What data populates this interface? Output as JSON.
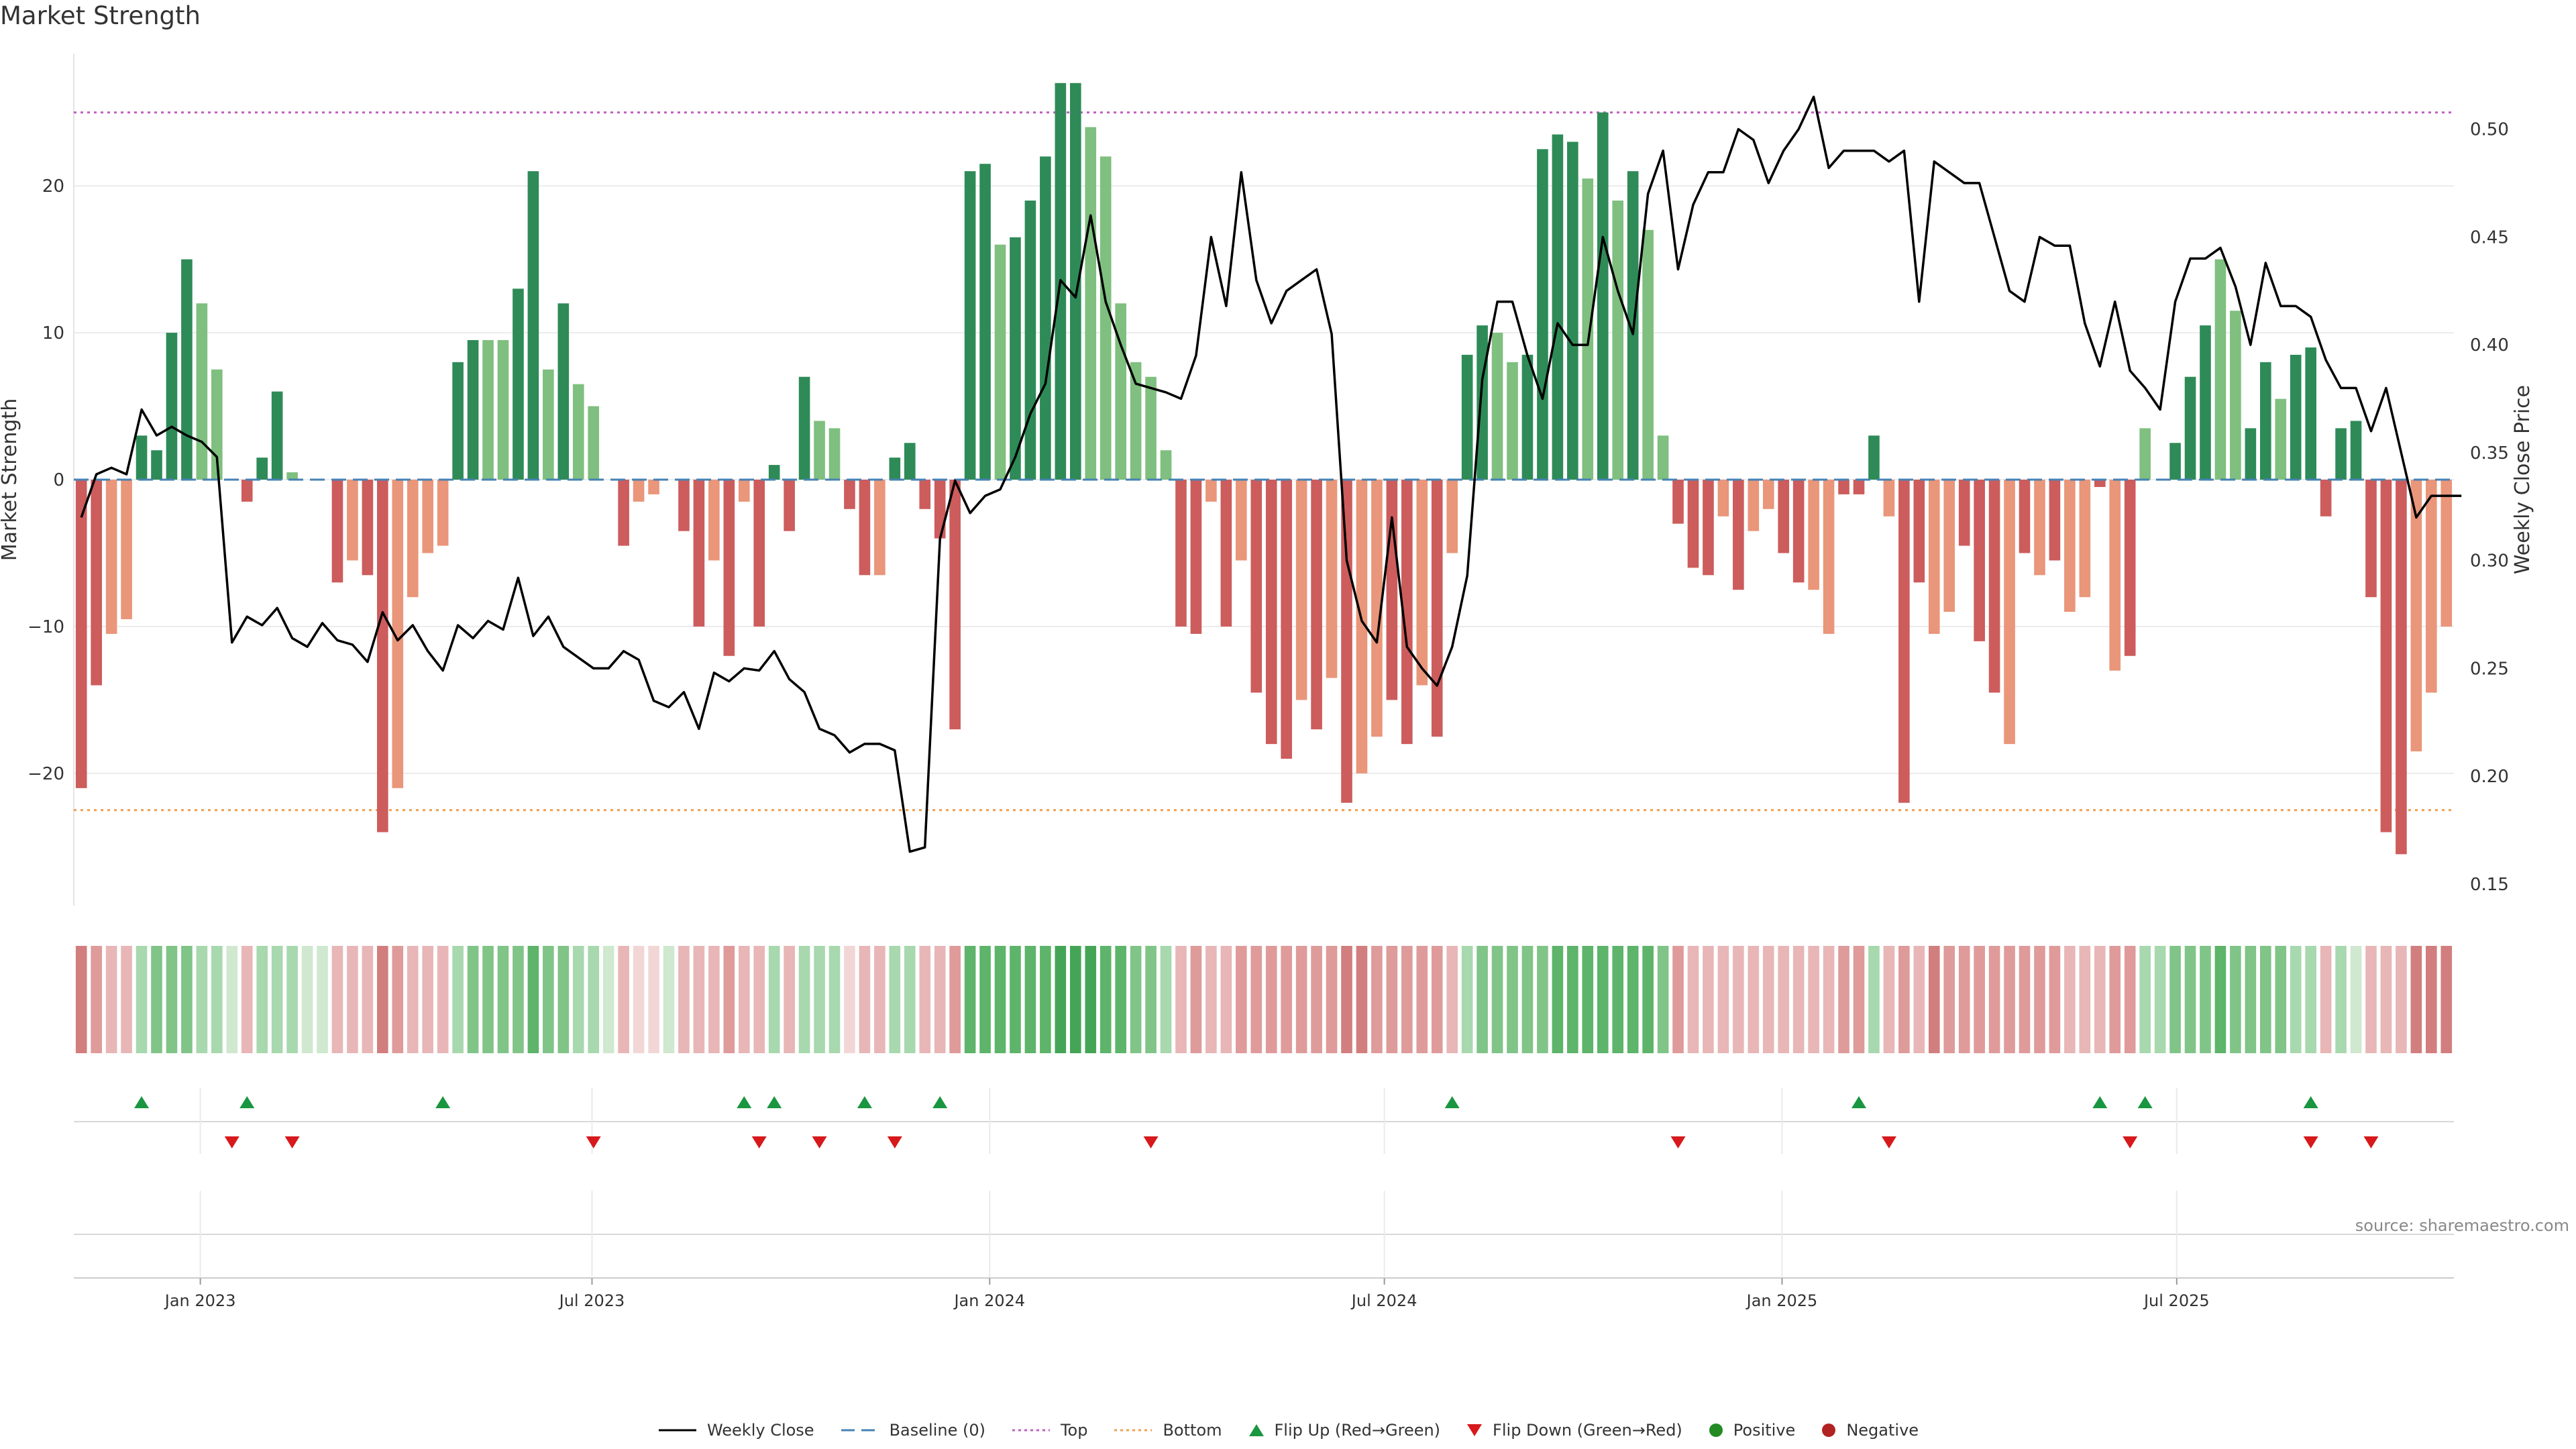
{
  "title": "Market Strength",
  "source": "source: sharemaestro.com",
  "colors": {
    "strong_green": "#2e8b57",
    "light_green": "#7fbf7f",
    "strong_red": "#cd5c5c",
    "light_red": "#e9967a",
    "price_line": "#000000",
    "baseline": "#4682b4",
    "top": "#c060c0",
    "bottom": "#f0a050",
    "flip_up": "#1a9641",
    "flip_down": "#d7191c",
    "positive": "#228b22",
    "negative": "#b22222"
  },
  "legend": [
    {
      "label": "Weekly Close",
      "icon": "solid-line"
    },
    {
      "label": "Baseline (0)",
      "icon": "dashed-line"
    },
    {
      "label": "Top",
      "icon": "dotted-line"
    },
    {
      "label": "Bottom",
      "icon": "dotted-line"
    },
    {
      "label": "Flip Up (Red→Green)",
      "icon": "triangle-up"
    },
    {
      "label": "Flip Down (Green→Red)",
      "icon": "triangle-down"
    },
    {
      "label": "Positive",
      "icon": "circle"
    },
    {
      "label": "Negative",
      "icon": "circle"
    }
  ],
  "chart_data": {
    "type": "bar",
    "ylabel": "Market Strength",
    "y2label": "Weekly Close Price",
    "ylim": [
      -29,
      29
    ],
    "y2lim": [
      0.14,
      0.535
    ],
    "yticks": [
      -20,
      -10,
      0,
      10,
      20
    ],
    "y2ticks": [
      0.15,
      0.2,
      0.25,
      0.3,
      0.35,
      0.4,
      0.45,
      0.5
    ],
    "ytick_labels": [
      "−20",
      "−10",
      "0",
      "10",
      "20"
    ],
    "y2tick_labels": [
      "0.15",
      "0.20",
      "0.25",
      "0.30",
      "0.35",
      "0.40",
      "0.45",
      "0.50"
    ],
    "xtick_labels": [
      "Jan 2023",
      "Jul 2023",
      "Jan 2024",
      "Jul 2024",
      "Jan 2025",
      "Jul 2025"
    ],
    "xtick_weeks": [
      8.4,
      34.4,
      60.8,
      87,
      113.4,
      139.6
    ],
    "top_line": 25,
    "bottom_line": -22.5,
    "baseline": 0,
    "strength": [
      -21,
      -14,
      -10.5,
      -9.5,
      3,
      2,
      10,
      15,
      12,
      7.5,
      0,
      -1.5,
      1.5,
      6,
      0.5,
      0,
      0,
      -7,
      -5.5,
      -6.5,
      -24,
      -21,
      -8,
      -5,
      -4.5,
      8,
      9.5,
      9.5,
      9.5,
      13,
      21,
      7.5,
      12,
      6.5,
      5,
      0,
      -4.5,
      -1.5,
      -1,
      0,
      -3.5,
      -10,
      -5.5,
      -12,
      -1.5,
      -10,
      1,
      -3.5,
      7,
      4,
      3.5,
      -2,
      -6.5,
      -6.5,
      1.5,
      2.5,
      -2,
      -4,
      -17,
      21,
      21.5,
      16,
      16.5,
      19,
      22,
      27,
      27,
      24,
      22,
      12,
      8,
      7,
      2,
      -10,
      -10.5,
      -1.5,
      -10,
      -5.5,
      -14.5,
      -18,
      -19,
      -15,
      -17,
      -13.5,
      -22,
      -20,
      -17.5,
      -15,
      -18,
      -14,
      -17.5,
      -5,
      8.5,
      10.5,
      10,
      8,
      8.5,
      22.5,
      23.5,
      23,
      20.5,
      25,
      19,
      21,
      17,
      3,
      -3,
      -6,
      -6.5,
      -2.5,
      -7.5,
      -3.5,
      -2,
      -5,
      -7,
      -7.5,
      -10.5,
      -1,
      -1,
      3,
      -2.5,
      -22,
      -7,
      -10.5,
      -9,
      -4.5,
      -11,
      -14.5,
      -18,
      -5,
      -6.5,
      -5.5,
      -9,
      -8,
      -0.5,
      -13,
      -12,
      3.5,
      0,
      2.5,
      7,
      10.5,
      15,
      11.5,
      3.5,
      8,
      5.5,
      8.5,
      9,
      -2.5,
      3.5,
      4,
      -8,
      -24,
      -25.5,
      -18.5,
      -14.5,
      -10
    ],
    "strong": [
      1,
      1,
      0,
      0,
      1,
      1,
      1,
      1,
      0,
      0,
      0,
      1,
      1,
      1,
      0,
      0,
      0,
      1,
      0,
      1,
      1,
      0,
      0,
      0,
      0,
      1,
      1,
      0,
      0,
      1,
      1,
      0,
      1,
      0,
      0,
      0,
      1,
      0,
      0,
      0,
      1,
      1,
      0,
      1,
      0,
      1,
      1,
      1,
      1,
      0,
      0,
      1,
      1,
      0,
      1,
      1,
      1,
      1,
      1,
      1,
      1,
      0,
      1,
      1,
      1,
      1,
      1,
      0,
      0,
      0,
      0,
      0,
      0,
      1,
      1,
      0,
      1,
      0,
      1,
      1,
      1,
      0,
      1,
      0,
      1,
      0,
      0,
      1,
      1,
      0,
      1,
      0,
      1,
      1,
      0,
      0,
      1,
      1,
      1,
      1,
      0,
      1,
      0,
      1,
      0,
      0,
      1,
      1,
      1,
      0,
      1,
      0,
      0,
      1,
      1,
      0,
      0,
      1,
      1,
      1,
      0,
      1,
      1,
      0,
      0,
      1,
      1,
      1,
      0,
      1,
      0,
      1,
      0,
      0,
      1,
      0,
      1,
      0,
      1,
      1,
      1,
      1,
      0,
      0,
      1,
      1,
      0,
      1,
      1,
      1,
      1,
      1,
      1,
      1,
      1,
      0,
      0,
      0
    ],
    "shade_level": [
      3,
      2,
      1,
      1,
      1,
      2,
      2,
      2,
      1,
      1,
      0,
      1,
      1,
      1,
      1,
      0,
      0,
      1,
      1,
      1,
      3,
      2,
      1,
      1,
      1,
      1,
      2,
      2,
      2,
      2,
      3,
      2,
      2,
      1,
      1,
      0,
      1,
      0,
      0,
      0,
      1,
      1,
      1,
      2,
      1,
      1,
      1,
      1,
      1,
      1,
      1,
      0,
      1,
      1,
      1,
      1,
      1,
      1,
      2,
      3,
      3,
      3,
      3,
      3,
      3,
      4,
      4,
      4,
      3,
      3,
      2,
      2,
      1,
      1,
      2,
      1,
      1,
      2,
      2,
      2,
      2,
      2,
      2,
      2,
      3,
      3,
      2,
      2,
      2,
      2,
      2,
      1,
      1,
      2,
      2,
      2,
      2,
      2,
      3,
      3,
      3,
      3,
      3,
      3,
      3,
      2,
      2,
      1,
      1,
      1,
      1,
      1,
      1,
      1,
      1,
      1,
      1,
      2,
      2,
      1,
      1,
      2,
      1,
      3,
      2,
      2,
      2,
      2,
      2,
      2,
      2,
      2,
      1,
      1,
      1,
      2,
      2,
      1,
      1,
      2,
      2,
      2,
      3,
      2,
      2,
      2,
      2,
      1,
      1,
      1,
      1,
      0,
      1,
      1,
      1,
      3,
      3,
      3,
      2,
      2
    ],
    "weekly_close": [
      0.32,
      0.34,
      0.343,
      0.34,
      0.37,
      0.358,
      0.362,
      0.358,
      0.355,
      0.348,
      0.262,
      0.274,
      0.27,
      0.278,
      0.264,
      0.26,
      0.271,
      0.263,
      0.261,
      0.253,
      0.276,
      0.263,
      0.27,
      0.258,
      0.249,
      0.27,
      0.264,
      0.272,
      0.268,
      0.292,
      0.265,
      0.274,
      0.26,
      0.255,
      0.25,
      0.25,
      0.258,
      0.254,
      0.235,
      0.232,
      0.239,
      0.222,
      0.248,
      0.244,
      0.25,
      0.249,
      0.258,
      0.245,
      0.239,
      0.222,
      0.219,
      0.211,
      0.215,
      0.215,
      0.212,
      0.165,
      0.167,
      0.31,
      0.337,
      0.322,
      0.33,
      0.333,
      0.348,
      0.368,
      0.382,
      0.43,
      0.422,
      0.46,
      0.42,
      0.4,
      0.382,
      0.38,
      0.378,
      0.375,
      0.395,
      0.45,
      0.418,
      0.48,
      0.43,
      0.41,
      0.425,
      0.43,
      0.435,
      0.405,
      0.3,
      0.272,
      0.262,
      0.32,
      0.26,
      0.25,
      0.242,
      0.26,
      0.293,
      0.384,
      0.42,
      0.42,
      0.395,
      0.375,
      0.41,
      0.4,
      0.4,
      0.45,
      0.425,
      0.405,
      0.47,
      0.49,
      0.435,
      0.465,
      0.48,
      0.48,
      0.5,
      0.495,
      0.475,
      0.49,
      0.5,
      0.515,
      0.482,
      0.49,
      0.49,
      0.49,
      0.485,
      0.49,
      0.42,
      0.485,
      0.48,
      0.475,
      0.475,
      0.45,
      0.425,
      0.42,
      0.45,
      0.446,
      0.446,
      0.41,
      0.39,
      0.42,
      0.388,
      0.38,
      0.37,
      0.42,
      0.44,
      0.44,
      0.445,
      0.427,
      0.4,
      0.438,
      0.418,
      0.418,
      0.413,
      0.393,
      0.38,
      0.38,
      0.36,
      0.38,
      0.35,
      0.32,
      0.33,
      0.33,
      0.33
    ],
    "flip_up_weeks": [
      4,
      11,
      24,
      44,
      46,
      52,
      57,
      91,
      118,
      134,
      137,
      148
    ],
    "flip_down_weeks": [
      10,
      14,
      34,
      45,
      49,
      54,
      71,
      106,
      120,
      136,
      148,
      152
    ]
  }
}
